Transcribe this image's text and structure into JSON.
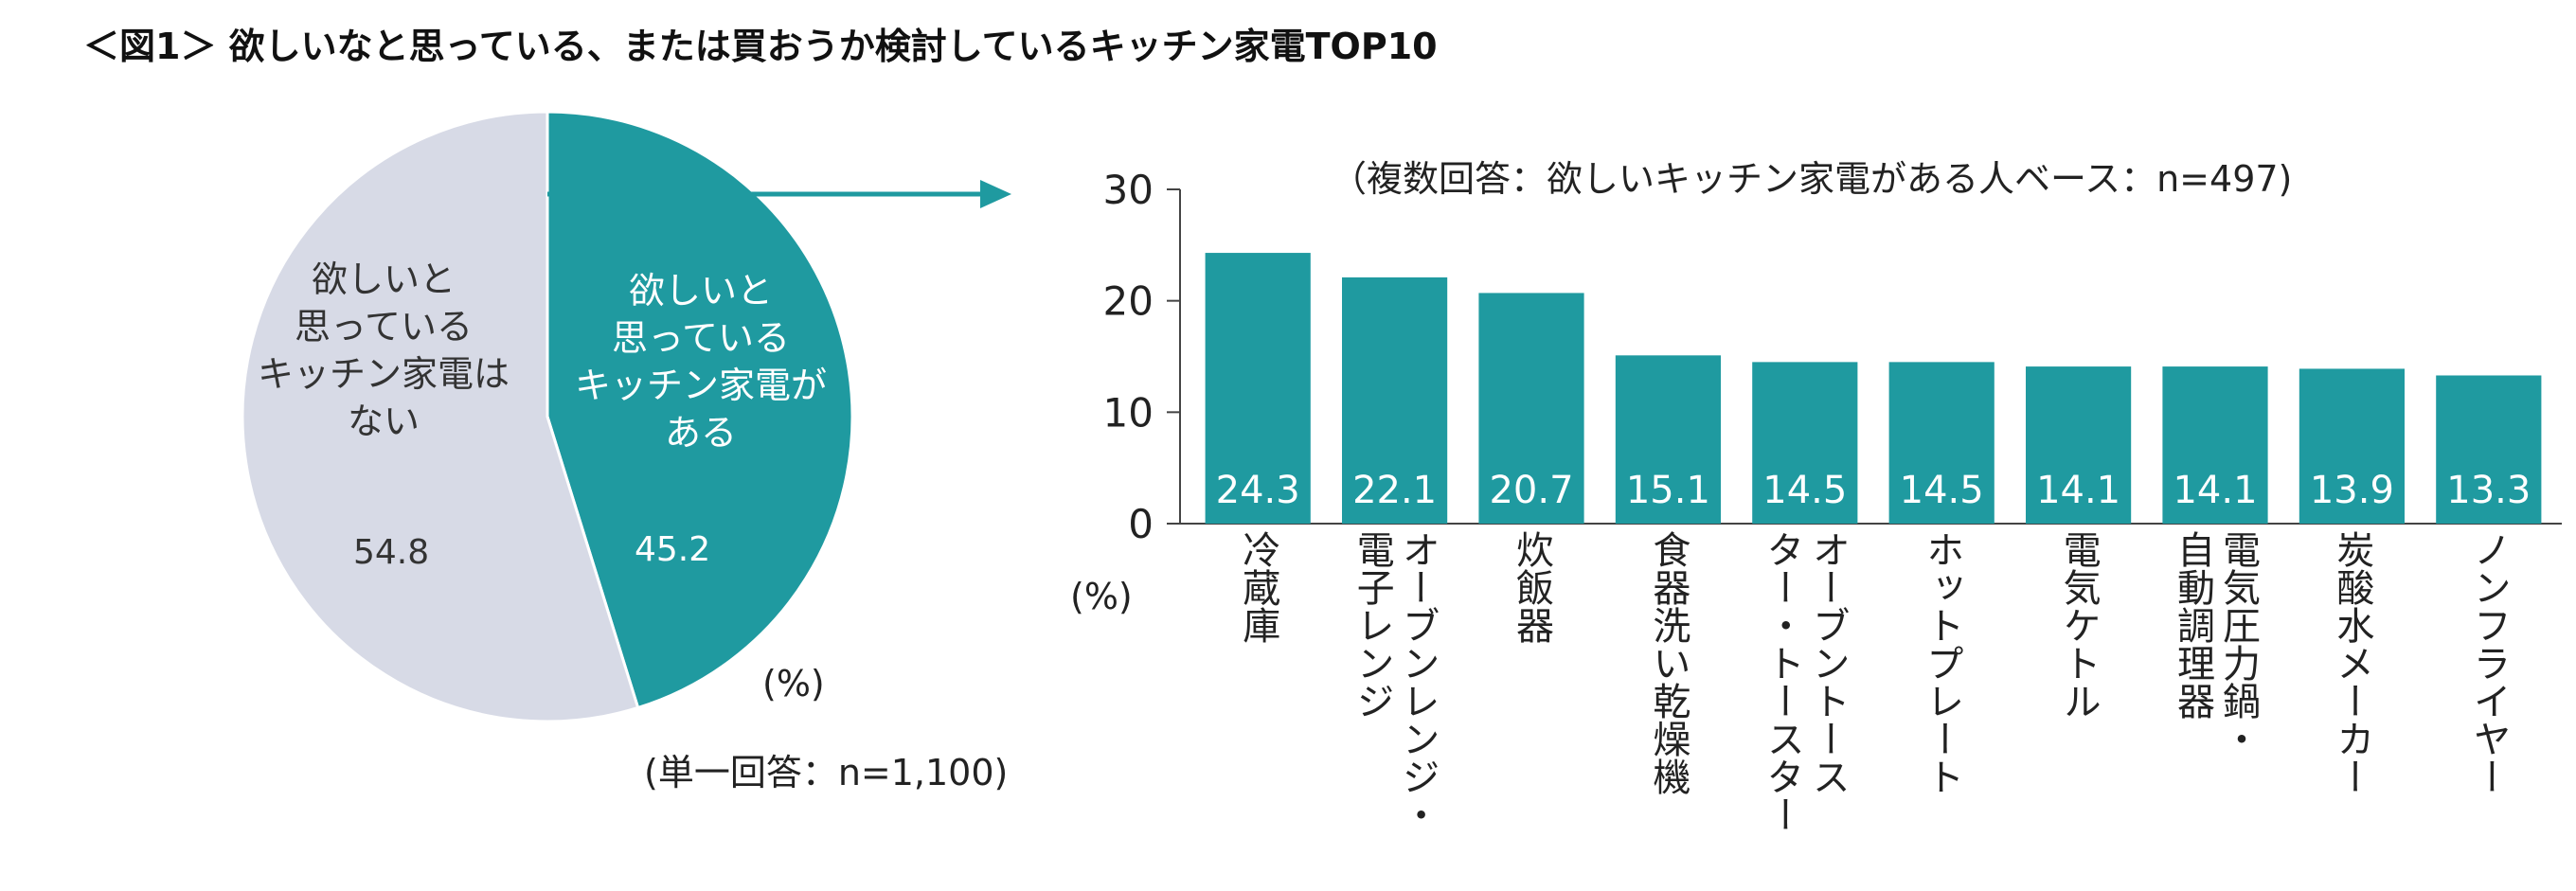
{
  "title": "＜図1＞ 欲しいなと思っている、または買おうか検討しているキッチン家電TOP10",
  "colors": {
    "accent": "#1f9aa0",
    "pie_other": "#d7dae6",
    "axis": "#444444"
  },
  "pie": {
    "segments": [
      {
        "label_lines": [
          "欲しいと",
          "思っている",
          "キッチン家電が",
          "ある"
        ],
        "value": 45.2,
        "value_text": "45.2",
        "color": "#1f9aa0"
      },
      {
        "label_lines": [
          "欲しいと",
          "思っている",
          "キッチン家電は",
          "ない"
        ],
        "value": 54.8,
        "value_text": "54.8",
        "color": "#d7dae6"
      }
    ],
    "unit": "(%)",
    "base": "(単一回答：n=1,100)"
  },
  "bar": {
    "base": "（複数回答：欲しいキッチン家電がある人ベース：n=497)",
    "unit": "(%)"
  },
  "chart_data": [
    {
      "type": "pie",
      "slices": [
        {
          "name": "欲しいと思っているキッチン家電がある",
          "value": 45.2
        },
        {
          "name": "欲しいと思っているキッチン家電はない",
          "value": 54.8
        }
      ]
    },
    {
      "type": "bar",
      "categories": [
        "冷蔵庫",
        "オーブンレンジ・電子レンジ",
        "炊飯器",
        "食器洗い乾燥機",
        "オーブントースター・トースター",
        "ホットプレート",
        "電気ケトル",
        "電気圧力鍋・自動調理器",
        "炭酸水メーカー",
        "ノンフライヤー"
      ],
      "values": [
        24.3,
        22.1,
        20.7,
        15.1,
        14.5,
        14.5,
        14.1,
        14.1,
        13.9,
        13.3
      ],
      "value_labels": [
        "24.3",
        "22.1",
        "20.7",
        "15.1",
        "14.5",
        "14.5",
        "14.1",
        "14.1",
        "13.9",
        "13.3"
      ],
      "ylim": [
        0,
        30
      ],
      "yticks": [
        "0",
        "10",
        "20",
        "30"
      ],
      "grid": false
    }
  ],
  "bar_label_columns": [
    [
      [
        "冷蔵庫"
      ]
    ],
    [
      [
        "電子レンジ"
      ],
      [
        "オーブンレンジ・"
      ]
    ],
    [
      [
        "炊飯器"
      ]
    ],
    [
      [
        "食器洗い乾燥機"
      ]
    ],
    [
      [
        "ター・トースター"
      ],
      [
        "オーブントース"
      ]
    ],
    [
      [
        "ホットプレート"
      ]
    ],
    [
      [
        "電気ケトル"
      ]
    ],
    [
      [
        "自動調理器"
      ],
      [
        "電気圧力鍋・"
      ]
    ],
    [
      [
        "炭酸水メーカー"
      ]
    ],
    [
      [
        "ノンフライヤー"
      ]
    ]
  ]
}
